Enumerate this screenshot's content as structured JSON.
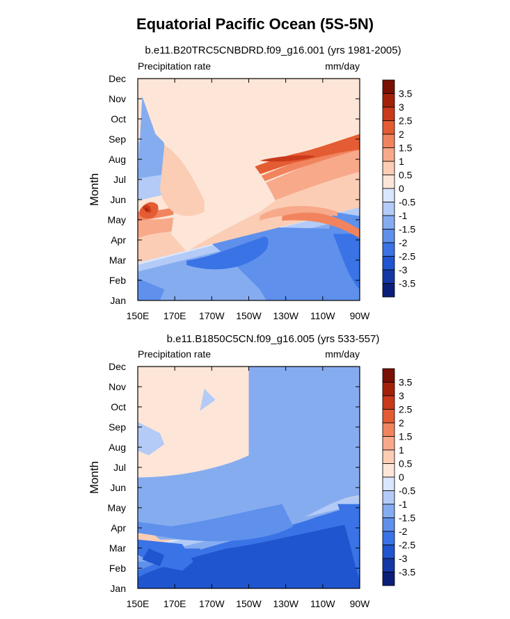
{
  "title": "Equatorial Pacific Ocean (5S-5N)",
  "chart_data": [
    {
      "type": "heatmap",
      "title": "b.e11.B20TRC5CNBDRD.f09_g16.001 (yrs 1981-2005)",
      "left_label": "Precipitation rate",
      "right_label": "mm/day",
      "ylabel": "Month",
      "x_ticks": [
        "150E",
        "170E",
        "170W",
        "150W",
        "130W",
        "110W",
        "90W"
      ],
      "y_ticks": [
        "Jan",
        "Feb",
        "Mar",
        "Apr",
        "May",
        "Jun",
        "Jul",
        "Aug",
        "Sep",
        "Oct",
        "Nov",
        "Dec"
      ],
      "colorbar_labels": [
        "3.5",
        "3",
        "2.5",
        "2",
        "1.5",
        "1",
        "0.5",
        "0",
        "-0.5",
        "-1",
        "-1.5",
        "-2",
        "-2.5",
        "-3",
        "-3.5"
      ]
    },
    {
      "type": "heatmap",
      "title": "b.e11.B1850C5CN.f09_g16.005 (yrs 533-557)",
      "left_label": "Precipitation rate",
      "right_label": "mm/day",
      "ylabel": "Month",
      "x_ticks": [
        "150E",
        "170E",
        "170W",
        "150W",
        "130W",
        "110W",
        "90W"
      ],
      "y_ticks": [
        "Jan",
        "Feb",
        "Mar",
        "Apr",
        "May",
        "Jun",
        "Jul",
        "Aug",
        "Sep",
        "Oct",
        "Nov",
        "Dec"
      ],
      "colorbar_labels": [
        "3.5",
        "3",
        "2.5",
        "2",
        "1.5",
        "1",
        "0.5",
        "0",
        "-0.5",
        "-1",
        "-1.5",
        "-2",
        "-2.5",
        "-3",
        "-3.5"
      ]
    }
  ],
  "colors": {
    "levels": [
      "#0c1e78",
      "#1537a6",
      "#1f55cf",
      "#3a73e6",
      "#5e90ec",
      "#86acf0",
      "#b3cbf6",
      "#d9e6fb",
      "#fde6d8",
      "#fbcdb4",
      "#f7a98a",
      "#f1845e",
      "#e45c33",
      "#c9391a",
      "#a32109",
      "#7a1004"
    ]
  }
}
